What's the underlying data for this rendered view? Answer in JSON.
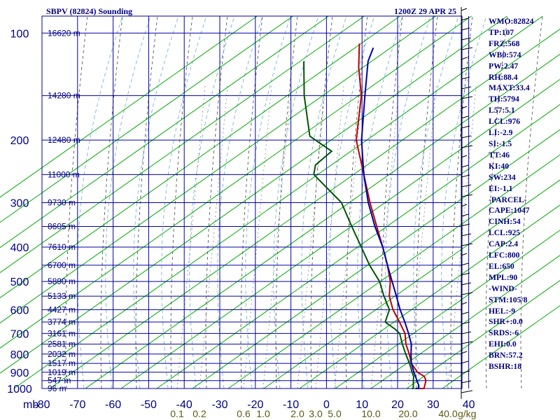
{
  "title_left": "SBPV (82824) Sounding",
  "title_right": "1200Z 29 APR 25",
  "indices": [
    "WMO:82824",
    "TP:107",
    "FRZ:568",
    "WB0:574",
    "PW:2.47",
    "RH:88.4",
    "MAXT:33.4",
    "TH:5794",
    "L57:5.1",
    "LCL:976",
    "LI:-2.9",
    "SI:-1.5",
    "TT:46",
    "KI:40",
    "SW:234",
    "EI:-1.1",
    "-PARCEL-",
    "CAPE:1047",
    "CINH:54",
    "LCL:925",
    "CAP:2.4",
    "LFC:800",
    "EL:650",
    "MPL:90",
    "-WIND-",
    "STM:105/8",
    "HEL:-9",
    "SHR+:0.0",
    "SRDS:-6",
    "EHI:0.0",
    "BRN:57.2",
    "BSHR:18"
  ],
  "chart_data": {
    "type": "skew-t log-p sounding",
    "y_axis_unit": "mb",
    "pressure_ticks": [
      100,
      200,
      300,
      400,
      500,
      600,
      700,
      800,
      900,
      1000
    ],
    "temperature_ticks": [
      -80,
      -70,
      -60,
      -50,
      -40,
      -30,
      -20,
      -10,
      0,
      10,
      20,
      30,
      40
    ],
    "temperature_tick_labels": [
      "-80",
      "-70",
      "-60",
      "-50",
      "-40",
      "-30",
      "-20",
      "-10",
      "0",
      "10",
      "20",
      "30",
      "40"
    ],
    "mixing_ratio_labels": [
      "0.1",
      "0.2",
      "0.6",
      "1.0",
      "2.0",
      "3.0",
      "5.0",
      "10.0",
      "20.0",
      "40.0"
    ],
    "mixing_ratio_unit": "g/kg",
    "height_labels": [
      {
        "p": 100,
        "label": "16620 m"
      },
      {
        "p": 150,
        "label": "14280 m"
      },
      {
        "p": 200,
        "label": "12480 m"
      },
      {
        "p": 250,
        "label": "11000 m"
      },
      {
        "p": 300,
        "label": "9730 m"
      },
      {
        "p": 350,
        "label": "8605 m"
      },
      {
        "p": 400,
        "label": "7610 m"
      },
      {
        "p": 450,
        "label": "6700 m"
      },
      {
        "p": 500,
        "label": "5890 m"
      },
      {
        "p": 550,
        "label": "5133 m"
      },
      {
        "p": 600,
        "label": "4427 m"
      },
      {
        "p": 650,
        "label": "3774 m"
      },
      {
        "p": 700,
        "label": "3161 m"
      },
      {
        "p": 750,
        "label": "2581 m"
      },
      {
        "p": 800,
        "label": "2032 m"
      },
      {
        "p": 850,
        "label": "1517 m"
      },
      {
        "p": 900,
        "label": "1019 m"
      },
      {
        "p": 950,
        "label": "547 m"
      },
      {
        "p": 1000,
        "label": "96 m"
      }
    ],
    "series": [
      {
        "name": "temperature",
        "color": "#bb0000",
        "points": [
          [
            1010,
            25
          ],
          [
            1000,
            27
          ],
          [
            950,
            25.5
          ],
          [
            925,
            24
          ],
          [
            900,
            21
          ],
          [
            850,
            17
          ],
          [
            800,
            14
          ],
          [
            750,
            10.5
          ],
          [
            700,
            7.5
          ],
          [
            650,
            3
          ],
          [
            600,
            -2
          ],
          [
            550,
            -6.5
          ],
          [
            500,
            -10
          ],
          [
            450,
            -15
          ],
          [
            400,
            -21
          ],
          [
            350,
            -28
          ],
          [
            300,
            -36
          ],
          [
            250,
            -45
          ],
          [
            200,
            -56
          ],
          [
            150,
            -66
          ],
          [
            125,
            -74
          ],
          [
            107,
            -80
          ]
        ]
      },
      {
        "name": "dewpoint",
        "color": "#005500",
        "points": [
          [
            1010,
            24
          ],
          [
            1000,
            24
          ],
          [
            950,
            22
          ],
          [
            925,
            21
          ],
          [
            900,
            19.5
          ],
          [
            850,
            16.5
          ],
          [
            800,
            13
          ],
          [
            750,
            9.5
          ],
          [
            700,
            6
          ],
          [
            680,
            3.5
          ],
          [
            650,
            -1
          ],
          [
            600,
            -3
          ],
          [
            550,
            -8
          ],
          [
            500,
            -13
          ],
          [
            450,
            -20
          ],
          [
            400,
            -27
          ],
          [
            350,
            -35
          ],
          [
            300,
            -44
          ],
          [
            250,
            -59
          ],
          [
            235,
            -61
          ],
          [
            215,
            -60
          ],
          [
            195,
            -70
          ],
          [
            150,
            -82
          ],
          [
            120,
            -91
          ]
        ]
      },
      {
        "name": "parcel",
        "color": "#0000aa",
        "points": [
          [
            1010,
            25
          ],
          [
            1000,
            25.5
          ],
          [
            976,
            24.5
          ],
          [
            925,
            21.5
          ],
          [
            900,
            20
          ],
          [
            850,
            17
          ],
          [
            800,
            14.5
          ],
          [
            750,
            12
          ],
          [
            700,
            8.5
          ],
          [
            650,
            4.5
          ],
          [
            600,
            0
          ],
          [
            550,
            -4.5
          ],
          [
            500,
            -9.5
          ],
          [
            450,
            -15
          ],
          [
            400,
            -21
          ],
          [
            350,
            -28.5
          ],
          [
            300,
            -36.5
          ],
          [
            250,
            -45
          ],
          [
            200,
            -54.5
          ],
          [
            150,
            -65
          ],
          [
            120,
            -73
          ],
          [
            110,
            -75
          ]
        ]
      }
    ],
    "grid": true
  }
}
